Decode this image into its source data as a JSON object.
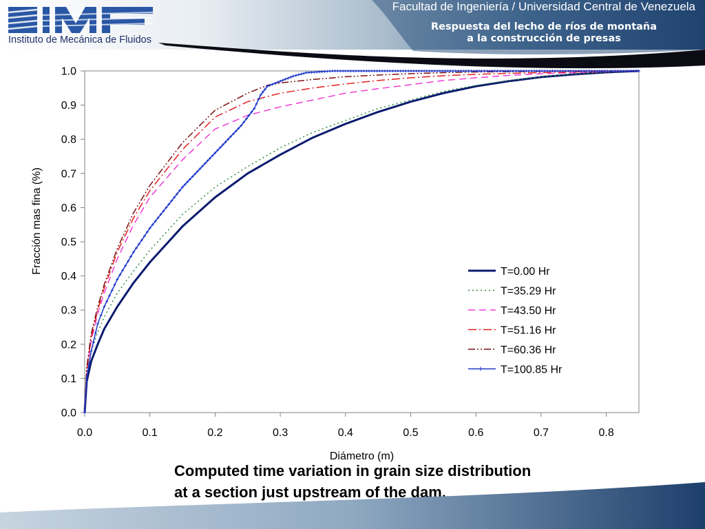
{
  "header": {
    "logo_mark": "IMF",
    "logo_text": "Instituto de Mecánica de Fluidos",
    "university": "Facultad de Ingeniería / Universidad Central de Venezuela",
    "subtitle_line1": "Respuesta del lecho de ríos de montaña",
    "subtitle_line2": "a la construcción de presas",
    "colors": {
      "navy": "#0d2b5c",
      "blue": "#1f4e8a",
      "light": "#c9d8e6"
    }
  },
  "caption": {
    "line1": "Computed time variation in grain size distribution",
    "line2": "at a section just upstream of the dam."
  },
  "chart_data": {
    "type": "line",
    "title": "",
    "xlabel": "Diámetro (m)",
    "ylabel": "Fracción mas fina (%)",
    "xlim": [
      0,
      0.85
    ],
    "ylim": [
      0,
      1
    ],
    "x_ticks": [
      "0.0",
      "0.1",
      "0.2",
      "0.3",
      "0.4",
      "0.5",
      "0.6",
      "0.7",
      "0.8"
    ],
    "y_ticks": [
      "0.0",
      "0.1",
      "0.2",
      "0.3",
      "0.4",
      "0.5",
      "0.6",
      "0.7",
      "0.8",
      "0.9",
      "1.0"
    ],
    "grid": false,
    "legend_position": "right",
    "series": [
      {
        "name": "T=0.00 Hr",
        "color": "#0a1a6e",
        "dash": "solid",
        "width": 3,
        "marker": false,
        "points": [
          [
            0,
            0
          ],
          [
            0.003,
            0.09
          ],
          [
            0.01,
            0.15
          ],
          [
            0.02,
            0.2
          ],
          [
            0.03,
            0.245
          ],
          [
            0.05,
            0.31
          ],
          [
            0.075,
            0.38
          ],
          [
            0.1,
            0.44
          ],
          [
            0.15,
            0.545
          ],
          [
            0.2,
            0.63
          ],
          [
            0.25,
            0.7
          ],
          [
            0.3,
            0.755
          ],
          [
            0.35,
            0.805
          ],
          [
            0.4,
            0.845
          ],
          [
            0.45,
            0.88
          ],
          [
            0.5,
            0.91
          ],
          [
            0.55,
            0.935
          ],
          [
            0.6,
            0.955
          ],
          [
            0.65,
            0.97
          ],
          [
            0.7,
            0.982
          ],
          [
            0.75,
            0.99
          ],
          [
            0.8,
            0.996
          ],
          [
            0.85,
            1.0
          ]
        ]
      },
      {
        "name": "T=35.29 Hr",
        "color": "#2e8b3a",
        "dash": "2,4",
        "width": 1.5,
        "marker": false,
        "points": [
          [
            0,
            0
          ],
          [
            0.003,
            0.11
          ],
          [
            0.01,
            0.18
          ],
          [
            0.02,
            0.235
          ],
          [
            0.03,
            0.28
          ],
          [
            0.05,
            0.35
          ],
          [
            0.075,
            0.415
          ],
          [
            0.1,
            0.475
          ],
          [
            0.15,
            0.58
          ],
          [
            0.2,
            0.66
          ],
          [
            0.25,
            0.72
          ],
          [
            0.3,
            0.775
          ],
          [
            0.35,
            0.82
          ],
          [
            0.4,
            0.855
          ],
          [
            0.45,
            0.89
          ],
          [
            0.5,
            0.915
          ],
          [
            0.55,
            0.94
          ],
          [
            0.6,
            0.958
          ],
          [
            0.65,
            0.972
          ],
          [
            0.7,
            0.983
          ],
          [
            0.75,
            0.991
          ],
          [
            0.8,
            0.997
          ],
          [
            0.85,
            1.0
          ]
        ]
      },
      {
        "name": "T=43.50 Hr",
        "color": "#ee3bd6",
        "dash": "10,6",
        "width": 1.5,
        "marker": false,
        "points": [
          [
            0,
            0
          ],
          [
            0.003,
            0.12
          ],
          [
            0.01,
            0.21
          ],
          [
            0.02,
            0.29
          ],
          [
            0.03,
            0.35
          ],
          [
            0.05,
            0.45
          ],
          [
            0.075,
            0.55
          ],
          [
            0.1,
            0.63
          ],
          [
            0.15,
            0.74
          ],
          [
            0.2,
            0.83
          ],
          [
            0.25,
            0.87
          ],
          [
            0.3,
            0.895
          ],
          [
            0.35,
            0.915
          ],
          [
            0.4,
            0.935
          ],
          [
            0.45,
            0.948
          ],
          [
            0.5,
            0.96
          ],
          [
            0.55,
            0.972
          ],
          [
            0.6,
            0.98
          ],
          [
            0.65,
            0.987
          ],
          [
            0.7,
            0.992
          ],
          [
            0.75,
            0.995
          ],
          [
            0.8,
            0.998
          ],
          [
            0.85,
            1.0
          ]
        ]
      },
      {
        "name": "T=51.16 Hr",
        "color": "#e02020",
        "dash": "12,4,2,4",
        "width": 1.5,
        "marker": false,
        "points": [
          [
            0,
            0
          ],
          [
            0.003,
            0.12
          ],
          [
            0.01,
            0.22
          ],
          [
            0.02,
            0.3
          ],
          [
            0.03,
            0.365
          ],
          [
            0.05,
            0.47
          ],
          [
            0.075,
            0.57
          ],
          [
            0.1,
            0.65
          ],
          [
            0.15,
            0.77
          ],
          [
            0.2,
            0.865
          ],
          [
            0.25,
            0.91
          ],
          [
            0.3,
            0.935
          ],
          [
            0.35,
            0.95
          ],
          [
            0.4,
            0.962
          ],
          [
            0.45,
            0.972
          ],
          [
            0.5,
            0.98
          ],
          [
            0.55,
            0.986
          ],
          [
            0.6,
            0.99
          ],
          [
            0.65,
            0.993
          ],
          [
            0.7,
            0.995
          ],
          [
            0.75,
            0.997
          ],
          [
            0.8,
            0.999
          ],
          [
            0.85,
            1.0
          ]
        ]
      },
      {
        "name": "T=60.36 Hr",
        "color": "#7a1010",
        "dash": "10,3,2,3,2,3",
        "width": 1.5,
        "marker": false,
        "points": [
          [
            0,
            0
          ],
          [
            0.003,
            0.13
          ],
          [
            0.01,
            0.23
          ],
          [
            0.02,
            0.31
          ],
          [
            0.03,
            0.375
          ],
          [
            0.05,
            0.48
          ],
          [
            0.075,
            0.585
          ],
          [
            0.1,
            0.665
          ],
          [
            0.15,
            0.79
          ],
          [
            0.2,
            0.885
          ],
          [
            0.25,
            0.935
          ],
          [
            0.28,
            0.958
          ],
          [
            0.3,
            0.965
          ],
          [
            0.35,
            0.975
          ],
          [
            0.4,
            0.983
          ],
          [
            0.45,
            0.988
          ],
          [
            0.5,
            0.992
          ],
          [
            0.55,
            0.995
          ],
          [
            0.6,
            0.997
          ],
          [
            0.65,
            0.998
          ],
          [
            0.7,
            0.999
          ],
          [
            0.75,
            1.0
          ],
          [
            0.85,
            1.0
          ]
        ]
      },
      {
        "name": "T=100.85 Hr",
        "color": "#1a35c8",
        "dash": "solid",
        "width": 1.5,
        "marker": true,
        "points": [
          [
            0,
            0
          ],
          [
            0.003,
            0.1
          ],
          [
            0.01,
            0.18
          ],
          [
            0.02,
            0.26
          ],
          [
            0.03,
            0.31
          ],
          [
            0.05,
            0.39
          ],
          [
            0.075,
            0.47
          ],
          [
            0.1,
            0.54
          ],
          [
            0.15,
            0.66
          ],
          [
            0.2,
            0.76
          ],
          [
            0.22,
            0.8
          ],
          [
            0.24,
            0.84
          ],
          [
            0.26,
            0.89
          ],
          [
            0.27,
            0.93
          ],
          [
            0.28,
            0.955
          ],
          [
            0.3,
            0.97
          ],
          [
            0.32,
            0.985
          ],
          [
            0.34,
            0.995
          ],
          [
            0.38,
            1.0
          ],
          [
            0.85,
            1.0
          ]
        ]
      }
    ]
  }
}
